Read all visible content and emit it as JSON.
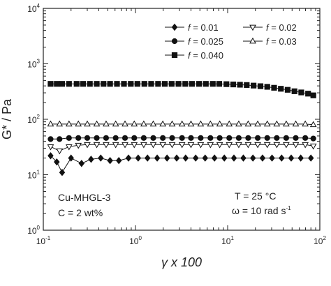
{
  "chart_data": {
    "type": "line",
    "title": "",
    "xlabel": "γ x 100",
    "ylabel": "G* / Pa",
    "xscale": "log",
    "yscale": "log",
    "xlim": [
      0.1,
      100
    ],
    "ylim": [
      1,
      10000
    ],
    "x_ticks": [
      {
        "base": "10",
        "exp": "-1"
      },
      {
        "base": "10",
        "exp": "0"
      },
      {
        "base": "10",
        "exp": "1"
      },
      {
        "base": "10",
        "exp": "2"
      }
    ],
    "y_ticks": [
      {
        "base": "10",
        "exp": "0"
      },
      {
        "base": "10",
        "exp": "1"
      },
      {
        "base": "10",
        "exp": "2"
      },
      {
        "base": "10",
        "exp": "3"
      },
      {
        "base": "10",
        "exp": "4"
      }
    ],
    "legend_placement": "top-right",
    "series": [
      {
        "name": "f = 0.01",
        "marker": "diamond-filled",
        "x": [
          0.12,
          0.14,
          0.16,
          0.2,
          0.26,
          0.33,
          0.42,
          0.53,
          0.66,
          0.84,
          1.07,
          1.35,
          1.72,
          2.2,
          2.8,
          3.5,
          4.5,
          5.7,
          7.2,
          9.2,
          11.7,
          14.8,
          18.8,
          23.9,
          30.3,
          38.5,
          48.9,
          62.1,
          80
        ],
        "y": [
          22,
          17,
          11,
          20,
          16,
          19,
          20,
          18,
          18,
          20,
          20,
          20,
          20,
          20,
          20,
          20,
          20,
          20,
          20,
          20,
          20,
          20,
          20,
          20,
          20,
          20,
          20,
          20,
          20
        ]
      },
      {
        "name": "f = 0.02",
        "marker": "triangle-down-open",
        "x": [
          0.12,
          0.15,
          0.19,
          0.24,
          0.3,
          0.38,
          0.48,
          0.61,
          0.77,
          0.97,
          1.23,
          1.56,
          1.98,
          2.5,
          3.2,
          4.0,
          5.1,
          6.5,
          8.2,
          10.4,
          13.2,
          16.7,
          21.2,
          26.9,
          34.1,
          43.2,
          54.8,
          69.5,
          85
        ],
        "y": [
          32,
          27,
          32,
          34,
          35,
          35,
          35,
          35,
          35,
          35,
          35,
          35,
          35,
          35,
          35,
          35,
          35,
          35,
          35,
          35,
          35,
          35,
          35,
          35,
          35,
          35,
          35,
          35,
          33
        ]
      },
      {
        "name": "f = 0.025",
        "marker": "circle-filled",
        "x": [
          0.12,
          0.15,
          0.19,
          0.24,
          0.3,
          0.38,
          0.48,
          0.61,
          0.77,
          0.97,
          1.23,
          1.56,
          1.98,
          2.5,
          3.2,
          4.0,
          5.1,
          6.5,
          8.2,
          10.4,
          13.2,
          16.7,
          21.2,
          26.9,
          34.1,
          43.2,
          54.8,
          69.5,
          85
        ],
        "y": [
          44,
          44,
          46,
          46,
          46,
          46,
          46,
          46,
          46,
          46,
          46,
          46,
          46,
          46,
          46,
          46,
          46,
          46,
          46,
          46,
          46,
          46,
          46,
          46,
          46,
          46,
          46,
          46,
          45
        ]
      },
      {
        "name": "f = 0.03",
        "marker": "triangle-up-open",
        "x": [
          0.12,
          0.15,
          0.19,
          0.24,
          0.3,
          0.38,
          0.48,
          0.61,
          0.77,
          0.97,
          1.23,
          1.56,
          1.98,
          2.5,
          3.2,
          4.0,
          5.1,
          6.5,
          8.2,
          10.4,
          13.2,
          16.7,
          21.2,
          26.9,
          34.1,
          43.2,
          54.8,
          69.5,
          85
        ],
        "y": [
          82,
          82,
          82,
          82,
          82,
          82,
          82,
          82,
          82,
          82,
          82,
          82,
          82,
          82,
          82,
          82,
          82,
          82,
          82,
          82,
          82,
          82,
          82,
          82,
          82,
          82,
          82,
          82,
          80
        ]
      },
      {
        "name": "f = 0.040",
        "marker": "square-filled",
        "x": [
          0.12,
          0.14,
          0.16,
          0.19,
          0.23,
          0.27,
          0.32,
          0.38,
          0.45,
          0.53,
          0.63,
          0.75,
          0.89,
          1.05,
          1.25,
          1.48,
          1.76,
          2.08,
          2.47,
          2.93,
          3.47,
          4.1,
          4.9,
          5.8,
          6.9,
          8.1,
          9.7,
          11.5,
          13.6,
          16.1,
          19.1,
          22.7,
          26.9,
          31.9,
          37.8,
          44.8,
          53.1,
          62.9,
          74.6,
          85
        ],
        "y": [
          435,
          435,
          435,
          435,
          435,
          435,
          435,
          435,
          435,
          435,
          435,
          435,
          435,
          435,
          435,
          435,
          435,
          435,
          435,
          435,
          435,
          435,
          435,
          435,
          435,
          435,
          430,
          425,
          420,
          415,
          405,
          395,
          385,
          370,
          355,
          340,
          320,
          305,
          290,
          270
        ]
      }
    ],
    "annotations": {
      "sample": "Cu-MHGL-3",
      "concentration": "C = 2 wt%",
      "temperature": "T = 25 °C",
      "frequency": "ω = 10 rad s",
      "frequency_exp": "-1"
    }
  }
}
